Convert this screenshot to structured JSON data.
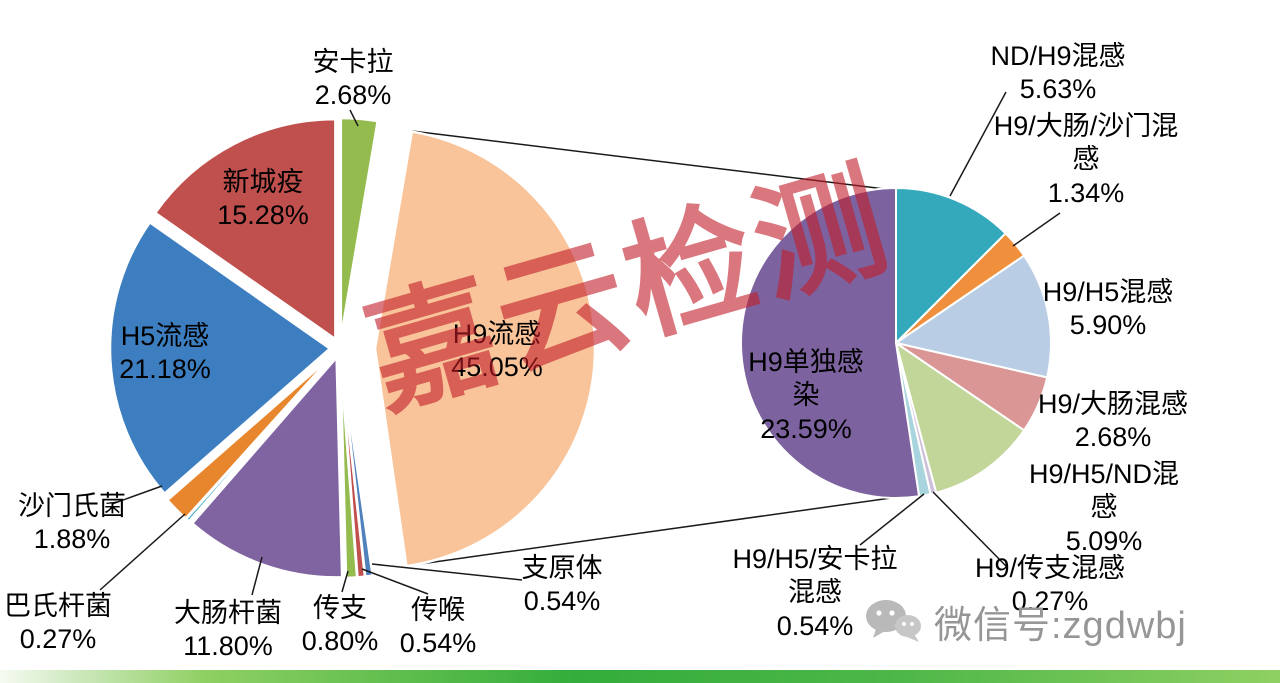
{
  "watermark": "嘉云检测",
  "footer": {
    "wechat_label": "微信号:zgdwbj"
  },
  "style_colors": {
    "watermark_red": "#C11C28",
    "footer_gray": "#969696",
    "bottom_bar_green": "#3AAF3B",
    "leader_line": "#1A1A1A"
  },
  "chart_data": {
    "type": "pie",
    "subtype": "pie-of-pie",
    "title": "",
    "legend": "none",
    "main_pie": {
      "slices": [
        {
          "id": "ankara",
          "label": "安卡拉",
          "value": 2.68,
          "color": "#94BB4E",
          "explode": 10
        },
        {
          "id": "h9-flu",
          "label": "H9流感",
          "value": 45.05,
          "color": "#F9C499",
          "explode": 35
        },
        {
          "id": "zhiyuanti",
          "label": "支原体",
          "value": 0.54,
          "color": "#4F81BD",
          "explode": 10
        },
        {
          "id": "chuanhou",
          "label": "传喉",
          "value": 0.54,
          "color": "#C0504D",
          "explode": 10
        },
        {
          "id": "chuanzhi",
          "label": "传支",
          "value": 0.8,
          "color": "#94BB4E",
          "explode": 10
        },
        {
          "id": "dachangganjun",
          "label": "大肠杆菌",
          "value": 11.8,
          "color": "#8064A2",
          "explode": 10
        },
        {
          "id": "bashiganjun",
          "label": "巴氏杆菌",
          "value": 0.27,
          "color": "#4BACC6",
          "explode": 10
        },
        {
          "id": "shamenshijun",
          "label": "沙门氏菌",
          "value": 1.88,
          "color": "#E8862E",
          "explode": 10
        },
        {
          "id": "h5-flu",
          "label": "H5流感",
          "value": 21.18,
          "color": "#3C7EC0",
          "explode": 10
        },
        {
          "id": "xinchengyi",
          "label": "新城疫",
          "value": 15.28,
          "color": "#C0504D",
          "explode": 10
        }
      ]
    },
    "breakdown_pie": {
      "represents": "H9流感 45.05%",
      "slices": [
        {
          "id": "nd-h9",
          "label": "ND/H9混感",
          "value": 5.63,
          "color": "#35A9BC",
          "explode": 0
        },
        {
          "id": "h9-dachang-shamen",
          "label": "H9/大肠/沙门混感",
          "value": 1.34,
          "color": "#F0903C",
          "explode": 0
        },
        {
          "id": "h9-h5",
          "label": "H9/H5混感",
          "value": 5.9,
          "color": "#B9CDE5",
          "explode": 0
        },
        {
          "id": "h9-dachang",
          "label": "H9/大肠混感",
          "value": 2.68,
          "color": "#D99694",
          "explode": 0
        },
        {
          "id": "h9-h5-nd",
          "label": "H9/H5/ND混感",
          "value": 5.09,
          "color": "#C2D69A",
          "explode": 0
        },
        {
          "id": "h9-chuanzhi",
          "label": "H9/传支混感",
          "value": 0.27,
          "color": "#CCC1D9",
          "explode": 0
        },
        {
          "id": "h9-h5-ankara",
          "label": "H9/H5/安卡拉混感",
          "value": 0.54,
          "color": "#A8D4DE",
          "explode": 0
        },
        {
          "id": "h9-single",
          "label": "H9单独感染",
          "value": 23.59,
          "color": "#7D62A0",
          "explode": 0
        }
      ]
    }
  },
  "labels": {
    "ankara": "安卡拉\n2.68%",
    "xinchengyi": "新城疫\n15.28%",
    "h5_flu": "H5流感\n21.18%",
    "shamenshijun": "沙门氏菌\n1.88%",
    "bashiganjun": "巴氏杆菌\n0.27%",
    "dachangganjun": "大肠杆菌\n11.80%",
    "chuanzhi": "传支\n0.80%",
    "chuanhou": "传喉\n0.54%",
    "zhiyuanti": "支原体\n0.54%",
    "h9_flu": "H9流感\n45.05%",
    "h9_single": "H9单独感\n染\n23.59%",
    "nd_h9": "ND/H9混感\n5.63%",
    "h9_dachang_shamen": "H9/大肠/沙门混\n感\n1.34%",
    "h9_h5": "H9/H5混感\n5.90%",
    "h9_dachang": "H9/大肠混感\n2.68%",
    "h9_h5_nd": "H9/H5/ND混感\n5.09%",
    "h9_chuanzhi": "H9/传支混感\n0.27%",
    "h9_h5_ankara": "H9/H5/安卡拉\n混感\n0.54%"
  }
}
